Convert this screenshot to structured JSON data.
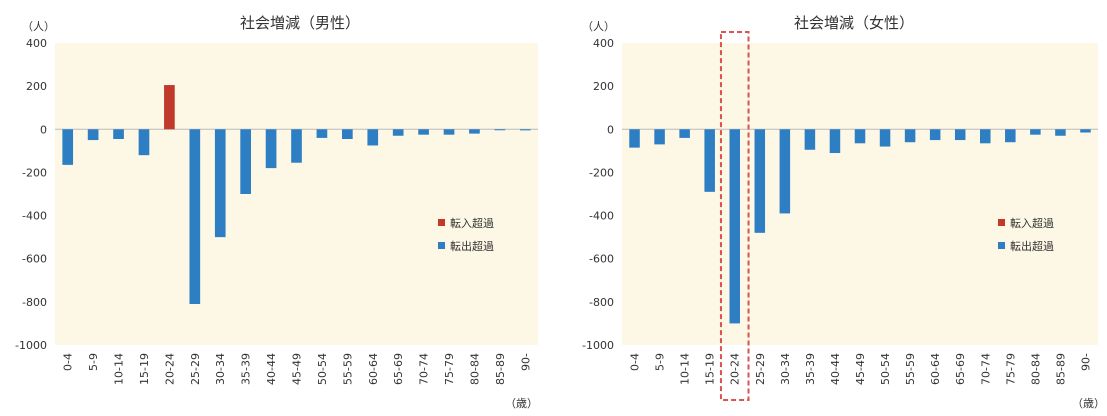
{
  "common": {
    "y_unit": "（人）",
    "x_unit": "（歳）",
    "legend": {
      "in": "転入超過",
      "out": "転出超過"
    },
    "colors": {
      "in": "#c0392b",
      "out": "#2e7ec4",
      "plot_bg": "#fdf8e6",
      "highlight": "#d9534f"
    }
  },
  "chart_data": [
    {
      "type": "bar",
      "title": "社会増減（男性）",
      "categories": [
        "0-4",
        "5-9",
        "10-14",
        "15-19",
        "20-24",
        "25-29",
        "30-34",
        "35-39",
        "40-44",
        "45-49",
        "50-54",
        "55-59",
        "60-64",
        "65-69",
        "70-74",
        "75-79",
        "80-84",
        "85-89",
        "90-"
      ],
      "values": [
        -165,
        -50,
        -45,
        -120,
        205,
        -810,
        -500,
        -300,
        -180,
        -155,
        -40,
        -45,
        -75,
        -30,
        -25,
        -25,
        -20,
        0,
        -5
      ],
      "ylim": [
        -1000,
        400
      ],
      "yticks": [
        "400",
        "200",
        "0",
        "-200",
        "-400",
        "-600",
        "-800",
        "-1000"
      ],
      "legend_position": "right"
    },
    {
      "type": "bar",
      "title": "社会増減（女性）",
      "categories": [
        "0-4",
        "5-9",
        "10-14",
        "15-19",
        "20-24",
        "25-29",
        "30-34",
        "35-39",
        "40-44",
        "45-49",
        "50-54",
        "55-59",
        "60-64",
        "65-69",
        "70-74",
        "75-79",
        "80-84",
        "85-89",
        "90-"
      ],
      "values": [
        -85,
        -70,
        -40,
        -290,
        -900,
        -480,
        -390,
        -95,
        -110,
        -65,
        -80,
        -60,
        -50,
        -50,
        -65,
        -60,
        -25,
        -30,
        -15
      ],
      "ylim": [
        -1000,
        400
      ],
      "yticks": [
        "400",
        "200",
        "0",
        "-200",
        "-400",
        "-600",
        "-800",
        "-1000"
      ],
      "legend_position": "right",
      "highlighted_category": "20-24"
    }
  ]
}
